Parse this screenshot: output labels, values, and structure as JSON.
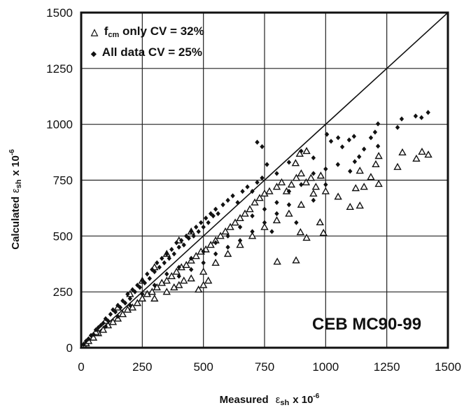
{
  "chart_data": {
    "type": "scatter",
    "title": "",
    "annotation": "CEB MC90-99",
    "xlabel": {
      "main": "Measured",
      "symbol": "ε",
      "sub": "sh",
      "tail": "x 10",
      "exp": "-6"
    },
    "ylabel": {
      "main": "Calculated",
      "symbol": "ε",
      "sub": "sh",
      "tail": "x 10",
      "exp": "-6"
    },
    "xlim": [
      0,
      1500
    ],
    "ylim": [
      0,
      1500
    ],
    "xticks": [
      "0",
      "250",
      "500",
      "750",
      "1000",
      "1250",
      "1500"
    ],
    "yticks": [
      "0",
      "250",
      "500",
      "750",
      "1000",
      "1250",
      "1500"
    ],
    "grid": true,
    "reference_line": "y = x",
    "legend_position": "top-left",
    "colors": {
      "ink": "#111111",
      "background": "#ffffff"
    },
    "series": [
      {
        "name": "f_cm only CV = 32%",
        "legend": {
          "symbol": "△",
          "pre": "f",
          "sub": "cm",
          "post": " only CV = 32%"
        },
        "marker": "triangle-open",
        "points": [
          [
            10,
            10
          ],
          [
            20,
            20
          ],
          [
            30,
            30
          ],
          [
            50,
            45
          ],
          [
            70,
            65
          ],
          [
            90,
            80
          ],
          [
            110,
            100
          ],
          [
            130,
            115
          ],
          [
            150,
            130
          ],
          [
            170,
            150
          ],
          [
            190,
            170
          ],
          [
            210,
            180
          ],
          [
            230,
            200
          ],
          [
            250,
            220
          ],
          [
            270,
            240
          ],
          [
            290,
            250
          ],
          [
            310,
            270
          ],
          [
            330,
            290
          ],
          [
            350,
            300
          ],
          [
            370,
            320
          ],
          [
            390,
            340
          ],
          [
            410,
            360
          ],
          [
            430,
            370
          ],
          [
            450,
            390
          ],
          [
            470,
            410
          ],
          [
            490,
            430
          ],
          [
            510,
            440
          ],
          [
            530,
            460
          ],
          [
            550,
            480
          ],
          [
            570,
            500
          ],
          [
            590,
            520
          ],
          [
            610,
            540
          ],
          [
            630,
            560
          ],
          [
            650,
            580
          ],
          [
            670,
            600
          ],
          [
            690,
            620
          ],
          [
            710,
            650
          ],
          [
            730,
            670
          ],
          [
            750,
            690
          ],
          [
            770,
            700
          ],
          [
            800,
            720
          ],
          [
            820,
            740
          ],
          [
            840,
            700
          ],
          [
            860,
            730
          ],
          [
            880,
            760
          ],
          [
            900,
            780
          ],
          [
            920,
            740
          ],
          [
            940,
            760
          ],
          [
            960,
            720
          ],
          [
            980,
            770
          ],
          [
            200,
            240
          ],
          [
            250,
            300
          ],
          [
            300,
            360
          ],
          [
            350,
            420
          ],
          [
            400,
            480
          ],
          [
            450,
            520
          ],
          [
            300,
            220
          ],
          [
            350,
            250
          ],
          [
            400,
            280
          ],
          [
            450,
            310
          ],
          [
            500,
            340
          ],
          [
            550,
            380
          ],
          [
            600,
            420
          ],
          [
            650,
            460
          ],
          [
            700,
            500
          ],
          [
            750,
            540
          ],
          [
            800,
            570
          ],
          [
            850,
            600
          ],
          [
            900,
            640
          ],
          [
            950,
            690
          ],
          [
            1000,
            700
          ],
          [
            150,
            180
          ],
          [
            100,
            120
          ],
          [
            60,
            70
          ],
          [
            500,
            280
          ],
          [
            520,
            300
          ],
          [
            480,
            260
          ],
          [
            420,
            300
          ],
          [
            380,
            270
          ],
          [
            1420,
            864
          ],
          [
            1394,
            877
          ],
          [
            1371,
            846
          ],
          [
            1314,
            874
          ],
          [
            1294,
            809
          ],
          [
            1217,
            858
          ],
          [
            1205,
            821
          ],
          [
            1185,
            764
          ],
          [
            1217,
            733
          ],
          [
            1157,
            720
          ],
          [
            1123,
            714
          ],
          [
            1140,
            636
          ],
          [
            1100,
            630
          ],
          [
            1140,
            792
          ],
          [
            1051,
            676
          ],
          [
            977,
            561
          ],
          [
            991,
            514
          ],
          [
            922,
            492
          ],
          [
            897,
            517
          ],
          [
            879,
            391
          ],
          [
            802,
            385
          ],
          [
            922,
            880
          ],
          [
            894,
            868
          ],
          [
            877,
            826
          ]
        ]
      },
      {
        "name": "All data CV = 25%",
        "legend": {
          "symbol": "◆",
          "pre": "All data CV = 25%",
          "sub": "",
          "post": ""
        },
        "marker": "diamond-filled",
        "points": [
          [
            10,
            15
          ],
          [
            20,
            30
          ],
          [
            30,
            40
          ],
          [
            40,
            55
          ],
          [
            50,
            60
          ],
          [
            60,
            80
          ],
          [
            70,
            90
          ],
          [
            80,
            100
          ],
          [
            90,
            110
          ],
          [
            100,
            130
          ],
          [
            110,
            120
          ],
          [
            120,
            150
          ],
          [
            130,
            170
          ],
          [
            140,
            160
          ],
          [
            150,
            190
          ],
          [
            160,
            180
          ],
          [
            170,
            210
          ],
          [
            180,
            200
          ],
          [
            190,
            240
          ],
          [
            200,
            220
          ],
          [
            210,
            260
          ],
          [
            220,
            250
          ],
          [
            230,
            280
          ],
          [
            240,
            270
          ],
          [
            250,
            300
          ],
          [
            260,
            290
          ],
          [
            270,
            330
          ],
          [
            280,
            310
          ],
          [
            290,
            350
          ],
          [
            300,
            340
          ],
          [
            310,
            380
          ],
          [
            320,
            360
          ],
          [
            330,
            400
          ],
          [
            340,
            380
          ],
          [
            350,
            420
          ],
          [
            360,
            400
          ],
          [
            370,
            440
          ],
          [
            380,
            420
          ],
          [
            390,
            470
          ],
          [
            400,
            450
          ],
          [
            410,
            480
          ],
          [
            420,
            460
          ],
          [
            430,
            500
          ],
          [
            440,
            490
          ],
          [
            450,
            520
          ],
          [
            460,
            500
          ],
          [
            470,
            540
          ],
          [
            480,
            520
          ],
          [
            490,
            560
          ],
          [
            500,
            540
          ],
          [
            510,
            580
          ],
          [
            520,
            560
          ],
          [
            530,
            600
          ],
          [
            540,
            590
          ],
          [
            550,
            620
          ],
          [
            560,
            600
          ],
          [
            580,
            640
          ],
          [
            600,
            660
          ],
          [
            620,
            680
          ],
          [
            640,
            650
          ],
          [
            660,
            700
          ],
          [
            680,
            720
          ],
          [
            700,
            700
          ],
          [
            720,
            740
          ],
          [
            740,
            760
          ],
          [
            300,
            280
          ],
          [
            350,
            330
          ],
          [
            400,
            360
          ],
          [
            450,
            400
          ],
          [
            500,
            430
          ],
          [
            550,
            470
          ],
          [
            600,
            500
          ],
          [
            650,
            540
          ],
          [
            700,
            590
          ],
          [
            750,
            620
          ],
          [
            800,
            650
          ],
          [
            850,
            700
          ],
          [
            900,
            730
          ],
          [
            950,
            780
          ],
          [
            250,
            240
          ],
          [
            200,
            190
          ],
          [
            150,
            140
          ],
          [
            100,
            95
          ],
          [
            400,
            320
          ],
          [
            450,
            350
          ],
          [
            500,
            380
          ],
          [
            550,
            420
          ],
          [
            600,
            450
          ],
          [
            650,
            480
          ],
          [
            700,
            520
          ],
          [
            750,
            560
          ],
          [
            800,
            600
          ],
          [
            850,
            640
          ],
          [
            880,
            560
          ],
          [
            780,
            520
          ],
          [
            740,
            900
          ],
          [
            720,
            920
          ],
          [
            760,
            820
          ],
          [
            800,
            780
          ],
          [
            850,
            830
          ],
          [
            900,
            880
          ],
          [
            950,
            850
          ],
          [
            1000,
            800
          ],
          [
            1050,
            820
          ],
          [
            1100,
            790
          ],
          [
            1000,
            730
          ],
          [
            950,
            660
          ],
          [
            1419,
            1053
          ],
          [
            1368,
            1037
          ],
          [
            1392,
            1030
          ],
          [
            1311,
            1024
          ],
          [
            1294,
            986
          ],
          [
            1214,
            1002
          ],
          [
            1202,
            965
          ],
          [
            1185,
            940
          ],
          [
            1214,
            902
          ],
          [
            1157,
            889
          ],
          [
            1116,
            946
          ],
          [
            1096,
            930
          ],
          [
            1051,
            940
          ],
          [
            1022,
            924
          ],
          [
            1005,
            955
          ],
          [
            1068,
            899
          ],
          [
            1137,
            855
          ],
          [
            1119,
            833
          ]
        ]
      }
    ]
  }
}
